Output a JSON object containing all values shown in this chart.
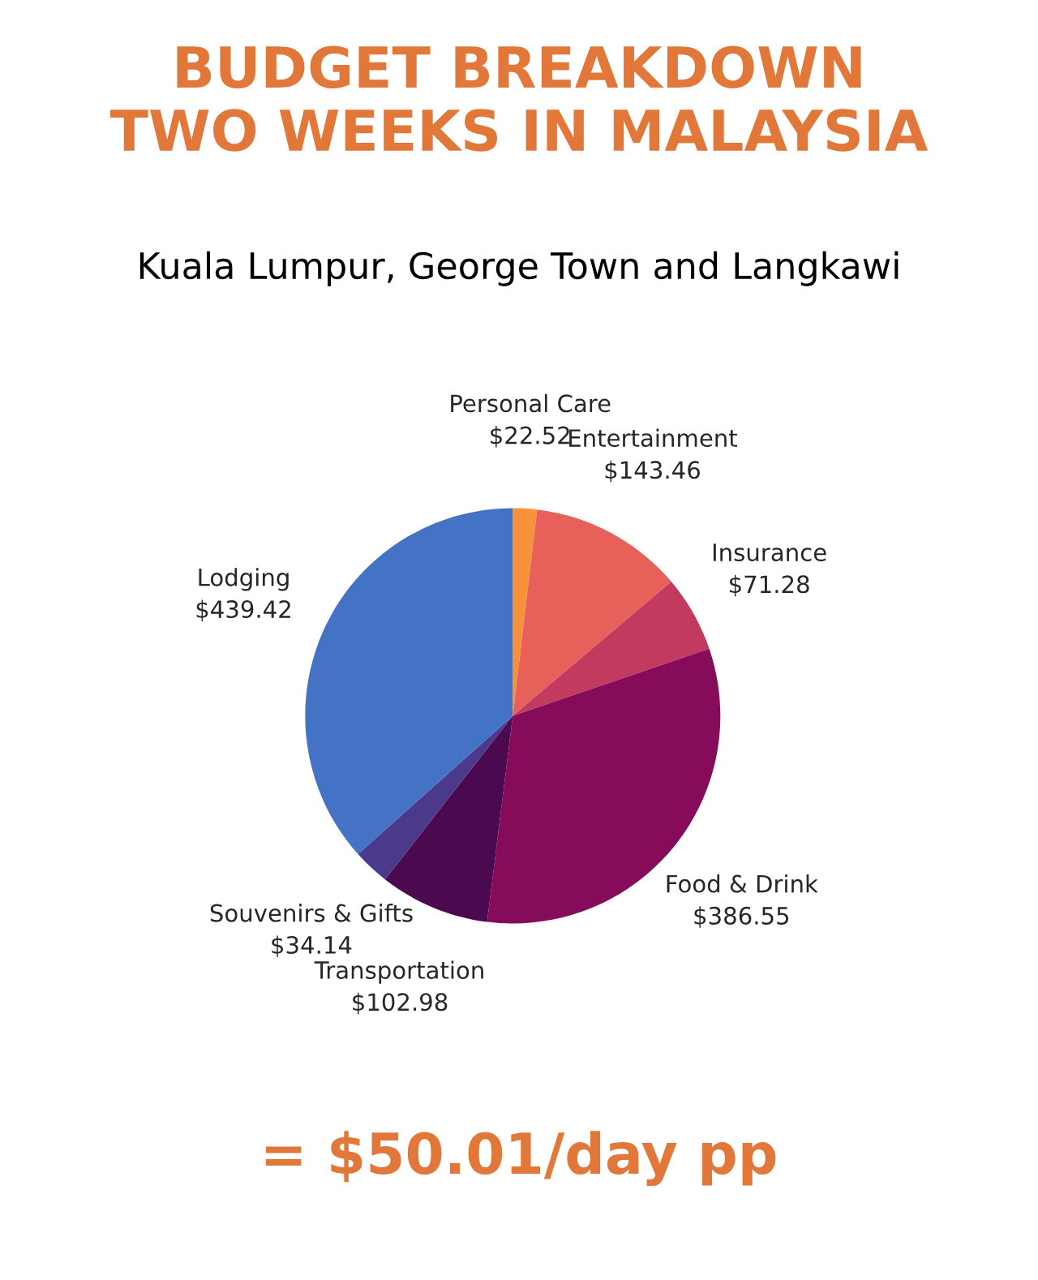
{
  "chart_data": {
    "type": "pie",
    "title": "BUDGET BREAKDOWN\nTWO WEEKS IN MALAYSIA",
    "subtitle": "Kuala Lumpur, George Town and Langkawi",
    "categories": [
      "Personal Care",
      "Entertainment",
      "Insurance",
      "Food & Drink",
      "Transportation",
      "Souvenirs & Gifts",
      "Lodging"
    ],
    "values": [
      22.52,
      143.46,
      71.28,
      386.55,
      102.98,
      34.14,
      439.42
    ],
    "value_labels": [
      "$22.52",
      "$143.46",
      "$71.28",
      "$386.55",
      "$102.98",
      "$34.14",
      "$439.42"
    ],
    "colors": [
      "#f7923a",
      "#e8605a",
      "#c23a5e",
      "#870b5b",
      "#4b0a50",
      "#4b3a8c",
      "#4472c4"
    ],
    "annotations": [
      "= $50.01/day pp"
    ],
    "legend": false
  }
}
